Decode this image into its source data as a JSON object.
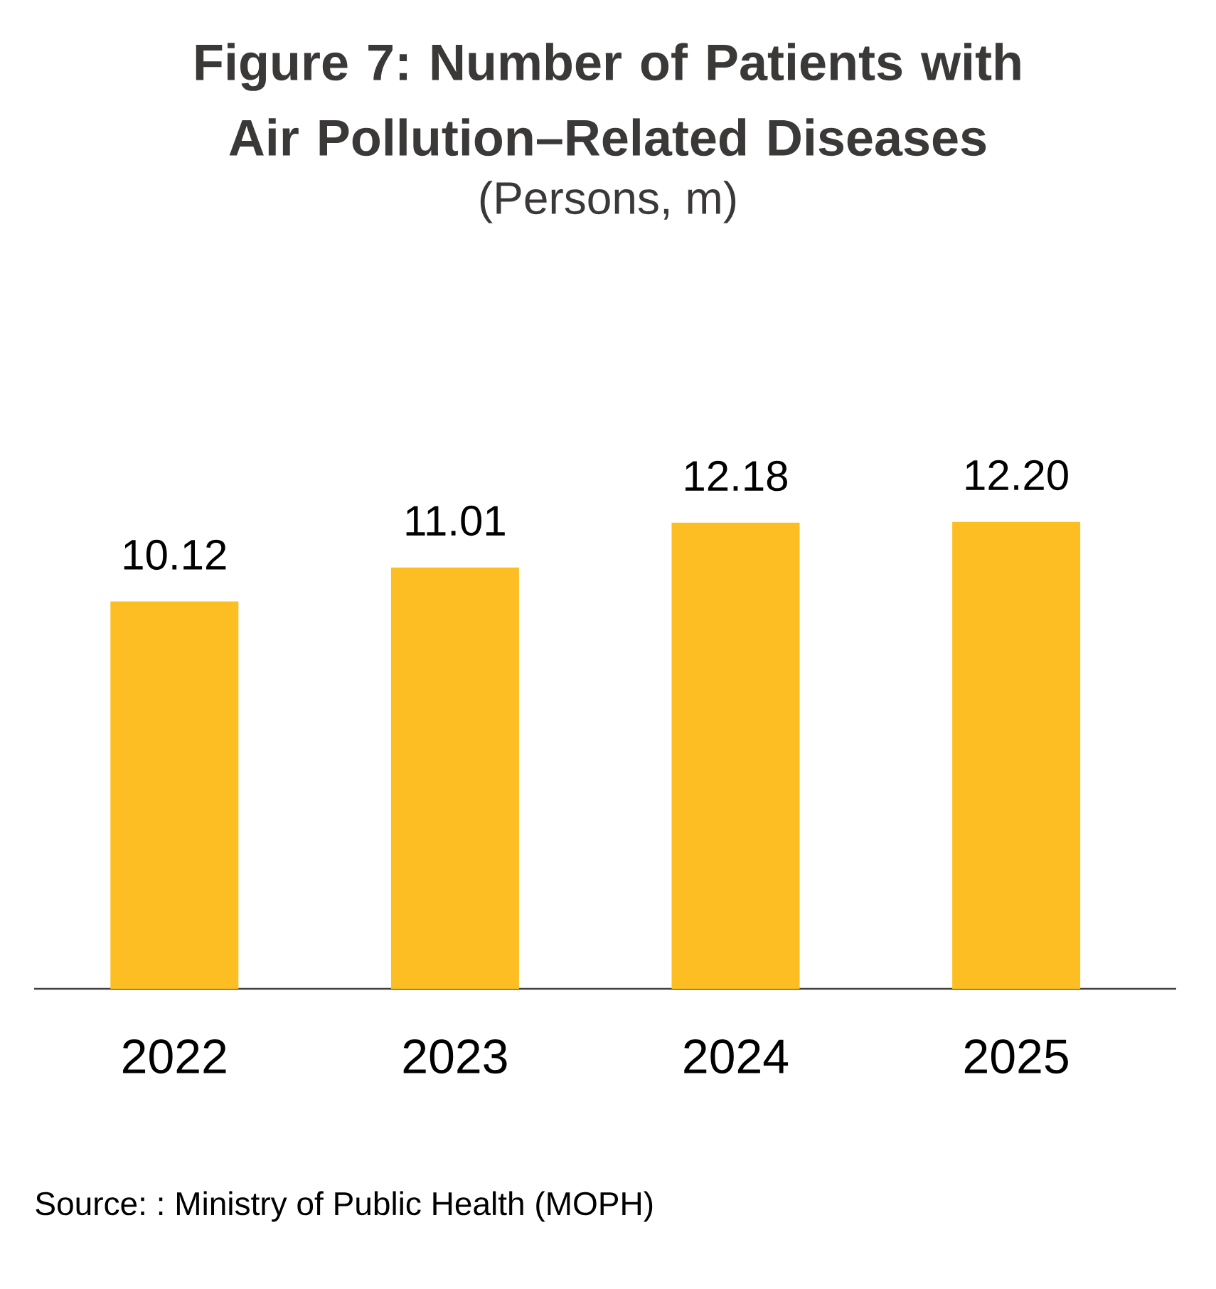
{
  "chart_data": {
    "type": "bar",
    "title": "Figure 7: Number of Patients with Air Pollution–Related Diseases",
    "subtitle": "(Persons, m)",
    "categories": [
      "2022",
      "2023",
      "2024",
      "2025"
    ],
    "values": [
      10.12,
      11.01,
      12.18,
      12.2
    ],
    "value_labels": [
      "10.12",
      "11.01",
      "12.18",
      "12.20"
    ],
    "color": "#fdbe24",
    "tick_labels": "x",
    "annotations": [
      "Source: : Ministry of Public Health (MOPH)"
    ]
  }
}
